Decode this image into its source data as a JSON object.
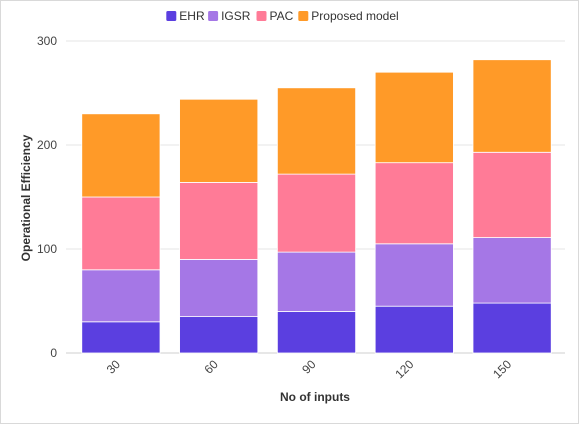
{
  "chart_data": {
    "type": "bar",
    "stacked": true,
    "categories": [
      "30",
      "60",
      "90",
      "120",
      "150"
    ],
    "series": [
      {
        "name": "EHR",
        "color": "#5b3fe0",
        "values": [
          30,
          35,
          40,
          45,
          48
        ]
      },
      {
        "name": "IGSR",
        "color": "#a577e6",
        "values": [
          50,
          55,
          57,
          60,
          63
        ]
      },
      {
        "name": "PAC",
        "color": "#ff7b97",
        "values": [
          70,
          74,
          75,
          78,
          82
        ]
      },
      {
        "name": "Proposed model",
        "color": "#ff9a28",
        "values": [
          80,
          80,
          83,
          87,
          89
        ]
      }
    ],
    "xlabel": "No of inputs",
    "ylabel": "Operational Efficiency",
    "ylim": [
      0,
      300
    ],
    "yticks": [
      0,
      100,
      200,
      300
    ],
    "grid": true,
    "legend": "top-center"
  }
}
